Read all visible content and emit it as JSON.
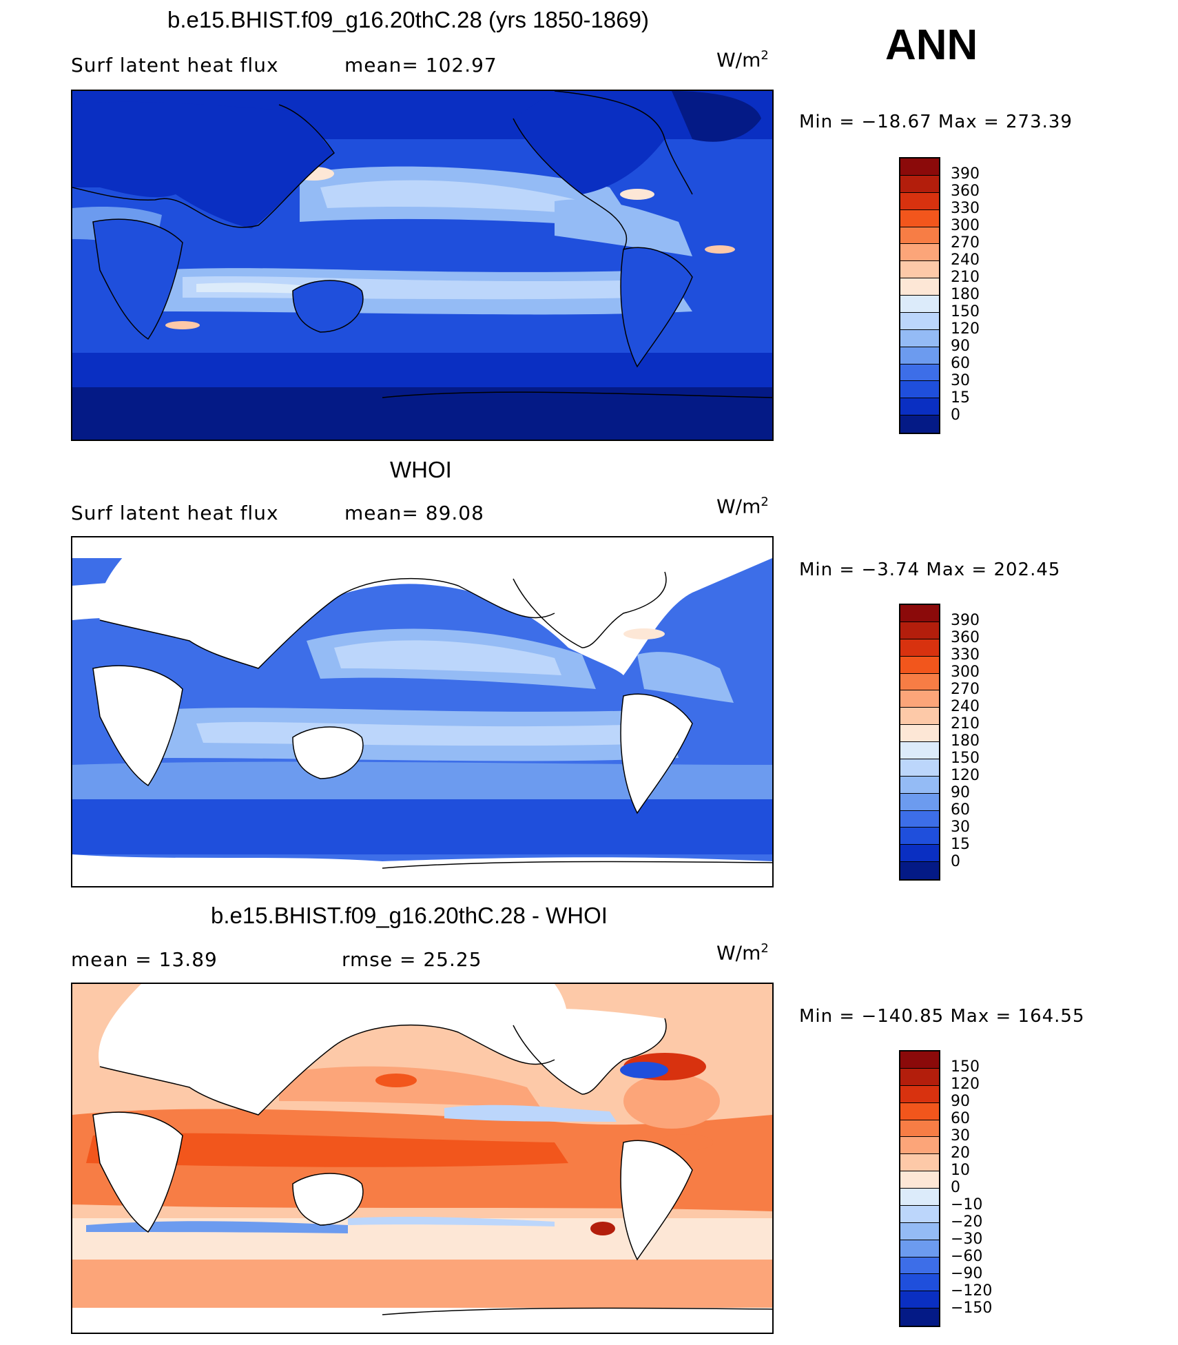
{
  "header": {
    "ann": "ANN"
  },
  "panels": [
    {
      "title": "b.e15.BHIST.f09_g16.20thC.28 (yrs 1850-1869)",
      "left_label": "Surf latent heat flux",
      "mid_label": "mean=  102.97",
      "unit": "W/m",
      "unit_sup": "2",
      "minmax": "Min  =  −18.67  Max  =  273.39",
      "colorbar_levels": [
        "390",
        "360",
        "330",
        "300",
        "270",
        "240",
        "210",
        "180",
        "150",
        "120",
        "90",
        "60",
        "30",
        "15",
        "0"
      ],
      "colorbar_colors": [
        "#8b0a0a",
        "#b31e0c",
        "#d8320f",
        "#f2561c",
        "#f77d45",
        "#fca579",
        "#fdc9a8",
        "#fde7d6",
        "#dcebfa",
        "#bcd6fb",
        "#94bbf5",
        "#6c9bef",
        "#3d6ee8",
        "#1f4fdc",
        "#0a2fc2",
        "#041a86"
      ]
    },
    {
      "title": "WHOI",
      "left_label": "Surf latent heat flux",
      "mid_label": "mean=   89.08",
      "unit": "W/m",
      "unit_sup": "2",
      "minmax": "Min  =   −3.74  Max  =  202.45",
      "colorbar_levels": [
        "390",
        "360",
        "330",
        "300",
        "270",
        "240",
        "210",
        "180",
        "150",
        "120",
        "90",
        "60",
        "30",
        "15",
        "0"
      ],
      "colorbar_colors": [
        "#8b0a0a",
        "#b31e0c",
        "#d8320f",
        "#f2561c",
        "#f77d45",
        "#fca579",
        "#fdc9a8",
        "#fde7d6",
        "#dcebfa",
        "#bcd6fb",
        "#94bbf5",
        "#6c9bef",
        "#3d6ee8",
        "#1f4fdc",
        "#0a2fc2",
        "#041a86"
      ]
    },
    {
      "title": "b.e15.BHIST.f09_g16.20thC.28 - WHOI",
      "left_label": "mean  =    13.89",
      "mid_label": "rmse  =    25.25",
      "unit": "W/m",
      "unit_sup": "2",
      "minmax": "Min  =  −140.85  Max  =  164.55",
      "colorbar_levels": [
        "150",
        "120",
        "90",
        "60",
        "30",
        "20",
        "10",
        "0",
        "−10",
        "−20",
        "−30",
        "−60",
        "−90",
        "−120",
        "−150"
      ],
      "colorbar_colors": [
        "#8b0a0a",
        "#b31e0c",
        "#d8320f",
        "#f2561c",
        "#f77d45",
        "#fca579",
        "#fdc9a8",
        "#fde7d6",
        "#dcebfa",
        "#bcd6fb",
        "#94bbf5",
        "#6c9bef",
        "#3d6ee8",
        "#1f4fdc",
        "#0a2fc2",
        "#041a86"
      ]
    }
  ]
}
